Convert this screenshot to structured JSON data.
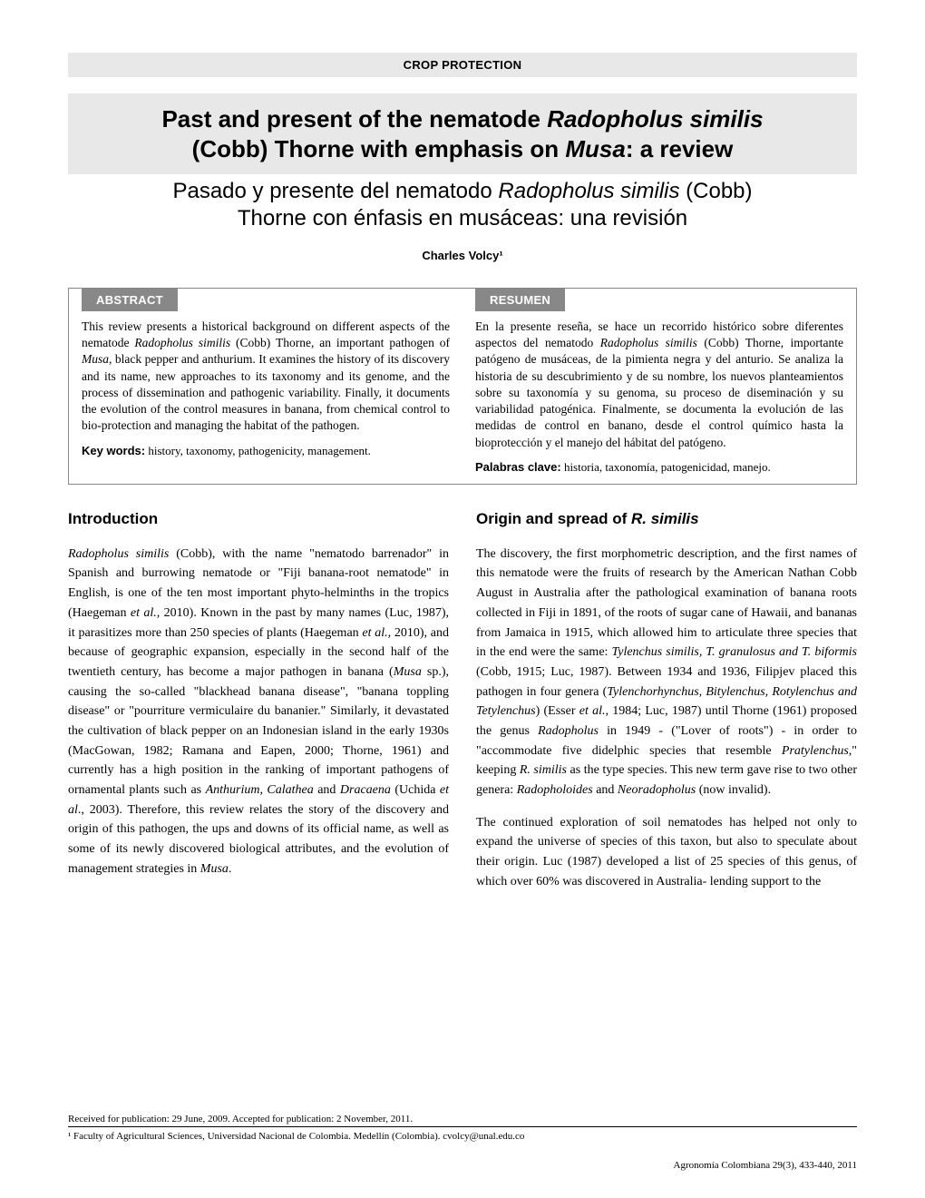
{
  "section_label": "CROP PROTECTION",
  "title": {
    "en_line1": "Past and present of the nematode Radopholus similis",
    "en_line2": "(Cobb) Thorne with emphasis on Musa: a review",
    "es_line1": "Pasado y presente del nematodo Radopholus similis (Cobb)",
    "es_line2": "Thorne con énfasis en musáceas: una revisión"
  },
  "author": "Charles Volcy¹",
  "abstract": {
    "header_en": "ABSTRACT",
    "header_es": "RESUMEN",
    "text_en": "This review presents a historical background on different aspects of the nematode Radopholus similis (Cobb) Thorne, an important pathogen of Musa, black pepper and anthurium. It examines the history of its discovery and its name, new approaches to its taxonomy and its genome, and the process of dissemination and pathogenic variability. Finally, it documents the evolution of the control measures in banana, from chemical control to bio-protection and managing the habitat of the pathogen.",
    "text_es": "En la presente reseña, se hace un recorrido histórico sobre diferentes aspectos del nematodo Radopholus similis (Cobb) Thorne, importante patógeno de musáceas, de la pimienta negra y del anturio. Se analiza la historia de su descubrimiento y de su nombre, los nuevos planteamientos sobre su taxonomía y su genoma, su proceso de diseminación y su variabilidad patogénica. Finalmente, se documenta la evolución de las medidas de control en banano, desde el control químico hasta la bioprotección y el manejo del hábitat del patógeno.",
    "keywords_label_en": "Key words:",
    "keywords_en": " history, taxonomy, pathogenicity, management.",
    "keywords_label_es": "Palabras clave:",
    "keywords_es": " historia, taxonomía, patogenicidad, manejo."
  },
  "sections": {
    "introduction_heading": "Introduction",
    "origin_heading": "Origin and spread of R. similis",
    "introduction_body": "Radopholus similis (Cobb), with the name \"nematodo barrenador\" in Spanish and burrowing nematode or \"Fiji banana-root nematode\" in English, is one of the ten most important phyto-helminths in the tropics (Haegeman et al., 2010). Known in the past by many names (Luc, 1987), it parasitizes more than 250 species of plants (Haegeman et al., 2010), and because of geographic expansion, especially in the second half of the twentieth century, has become a major pathogen in banana (Musa sp.), causing the so-called \"blackhead banana disease\", \"banana toppling disease\" or \"pourriture vermiculaire du bananier.\" Similarly, it devastated the cultivation of black pepper on an Indonesian island in the early 1930s (MacGowan, 1982; Ramana and Eapen, 2000; Thorne, 1961) and currently has a high position in the ranking of important pathogens of ornamental plants such as Anthurium, Calathea and Dracaena (Uchida et al., 2003). Therefore, this review relates the story of the discovery and origin of this pathogen, the ups and downs of its official name, as well as some of its newly discovered biological attributes, and the evolution of management strategies in Musa.",
    "origin_body_p1": "The discovery, the first morphometric description, and the first names of this nematode were the fruits of research by the American Nathan Cobb August in Australia after the pathological examination of banana roots collected in Fiji in 1891, of the roots of sugar cane of Hawaii, and bananas from Jamaica in 1915, which allowed him to articulate three species that in the end were the same: Tylenchus similis, T. granulosus and T. biformis (Cobb, 1915; Luc, 1987). Between 1934 and 1936, Filipjev placed this pathogen in four genera (Tylenchorhynchus, Bitylenchus, Rotylenchus and Tetylenchus) (Esser et al., 1984; Luc, 1987) until Thorne (1961) proposed the genus Radopholus in 1949 - (\"Lover of roots\") - in order to \"accommodate five didelphic species that resemble Pratylenchus,\" keeping R. similis as the type species. This new term gave rise to two other genera: Radopholoides and Neoradopholus (now invalid).",
    "origin_body_p2": "The continued exploration of soil nematodes has helped not only to expand the universe of species of this taxon, but also to speculate about their origin. Luc (1987) developed a list of 25 species of this genus, of which over 60% was discovered in Australia- lending support to the"
  },
  "footer": {
    "received": "Received for publication: 29 June, 2009. Accepted for publication: 2 November, 2011.",
    "affiliation": "¹  Faculty of Agricultural Sciences, Universidad Nacional de Colombia. Medellín (Colombia).  cvolcy@unal.edu.co",
    "journal": "Agronomía Colombiana 29(3), 433-440, 2011"
  },
  "colors": {
    "light_gray": "#e8e8e8",
    "header_gray": "#888888",
    "text": "#000000",
    "background": "#ffffff"
  },
  "typography": {
    "body_font": "Georgia, Times New Roman, serif",
    "heading_font": "Arial, Helvetica, sans-serif",
    "title_size_pt": 26,
    "subtitle_size_pt": 24,
    "body_size_pt": 14,
    "abstract_size_pt": 13.5,
    "footer_size_pt": 11
  }
}
